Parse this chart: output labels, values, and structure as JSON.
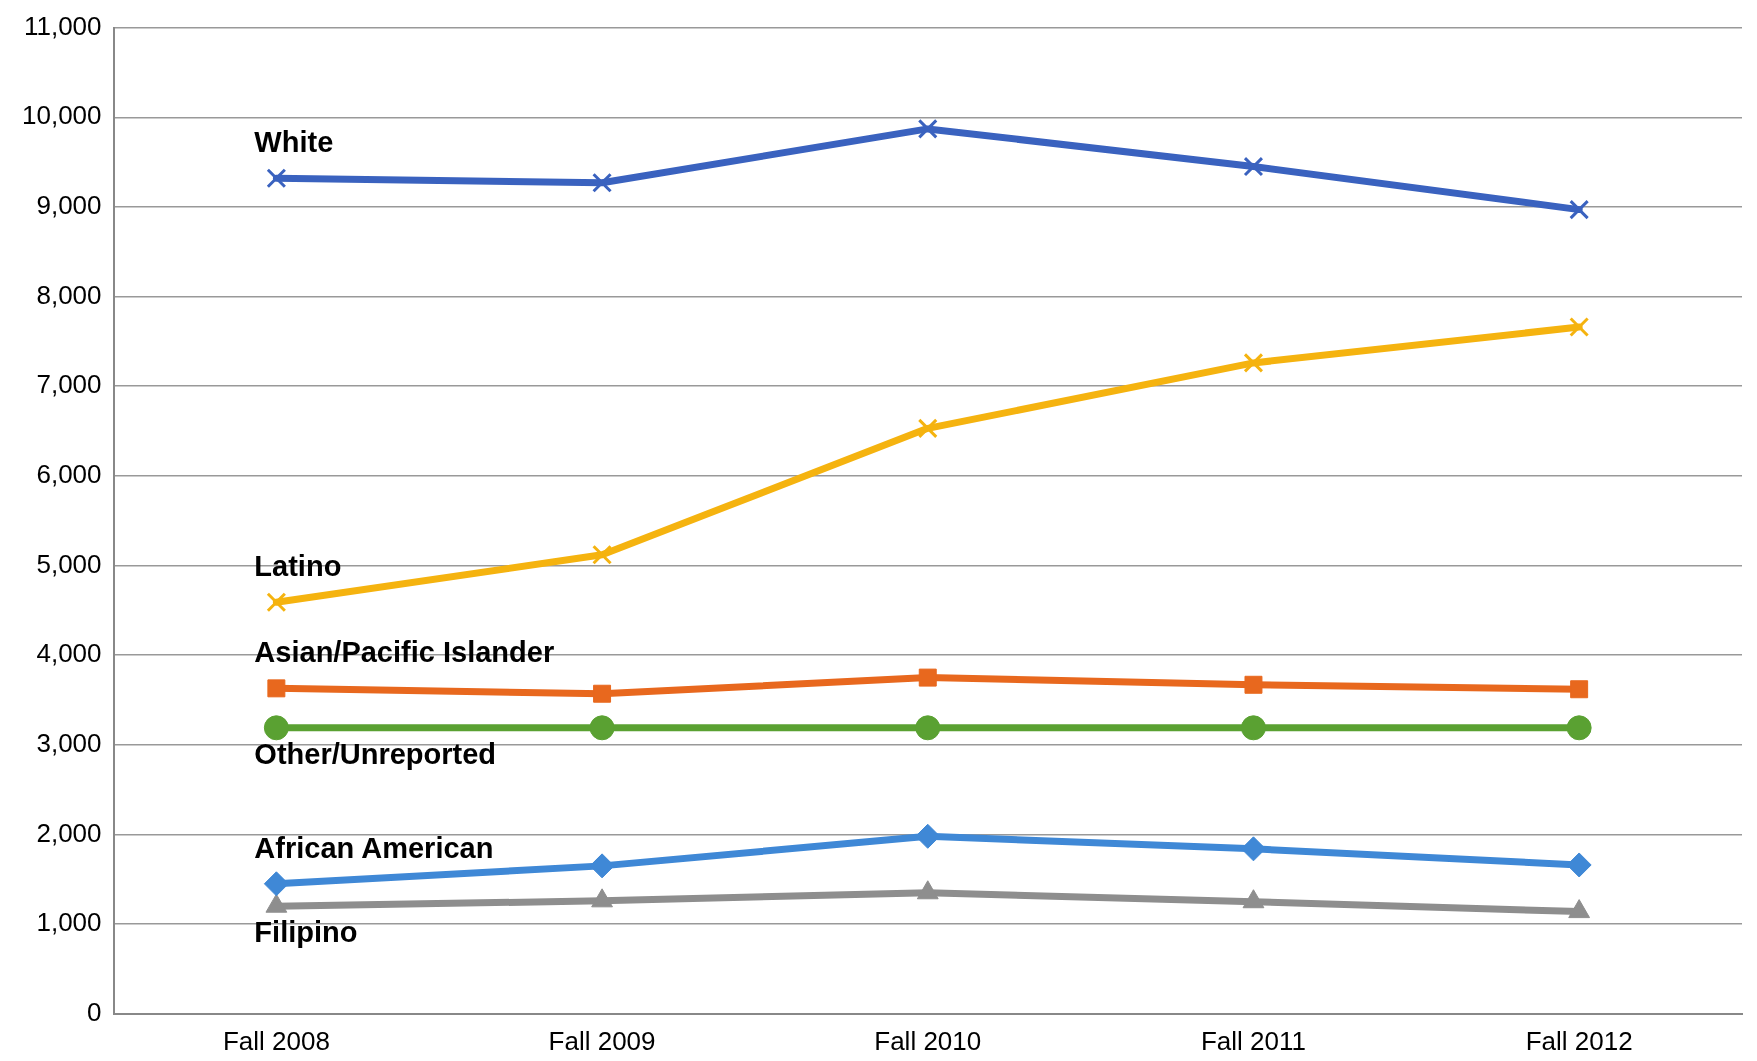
{
  "chart_data": {
    "type": "line",
    "categories": [
      "Fall 2008",
      "Fall 2009",
      "Fall 2010",
      "Fall 2011",
      "Fall 2012"
    ],
    "series": [
      {
        "name": "White",
        "color": "#3a62bf",
        "marker": "cross",
        "values": [
          9320,
          9270,
          9870,
          9450,
          8970
        ]
      },
      {
        "name": "Latino",
        "color": "#f5b30f",
        "marker": "cross",
        "values": [
          4590,
          5120,
          6530,
          7260,
          7660
        ]
      },
      {
        "name": "Asian/Pacific Islander",
        "color": "#e8681e",
        "marker": "square",
        "values": [
          3630,
          3570,
          3750,
          3670,
          3620
        ]
      },
      {
        "name": "Other/Unreported",
        "color": "#5aa132",
        "marker": "circle",
        "values": [
          3190,
          3190,
          3190,
          3190,
          3190
        ]
      },
      {
        "name": "African American",
        "color": "#3f88d6",
        "marker": "diamond",
        "values": [
          1450,
          1650,
          1980,
          1840,
          1660
        ]
      },
      {
        "name": "Filipino",
        "color": "#8e8e8e",
        "marker": "triangle",
        "values": [
          1200,
          1260,
          1350,
          1250,
          1140
        ]
      }
    ],
    "ylim": [
      0,
      11000
    ],
    "yticks": [
      0,
      {
        "value": 1000,
        "label": "1,000"
      },
      {
        "value": 2000,
        "label": "2,000"
      },
      {
        "value": 3000,
        "label": "3,000"
      },
      {
        "value": 4000,
        "label": "4,000"
      },
      {
        "value": 5000,
        "label": "5,000"
      },
      {
        "value": 6000,
        "label": "6,000"
      },
      {
        "value": 7000,
        "label": "7,000"
      },
      {
        "value": 8000,
        "label": "8,000"
      },
      {
        "value": 9000,
        "label": "9,000"
      },
      {
        "value": 10000,
        "label": "10,000"
      },
      {
        "value": 11000,
        "label": "11,000"
      }
    ],
    "grid": "y",
    "legend": false
  }
}
